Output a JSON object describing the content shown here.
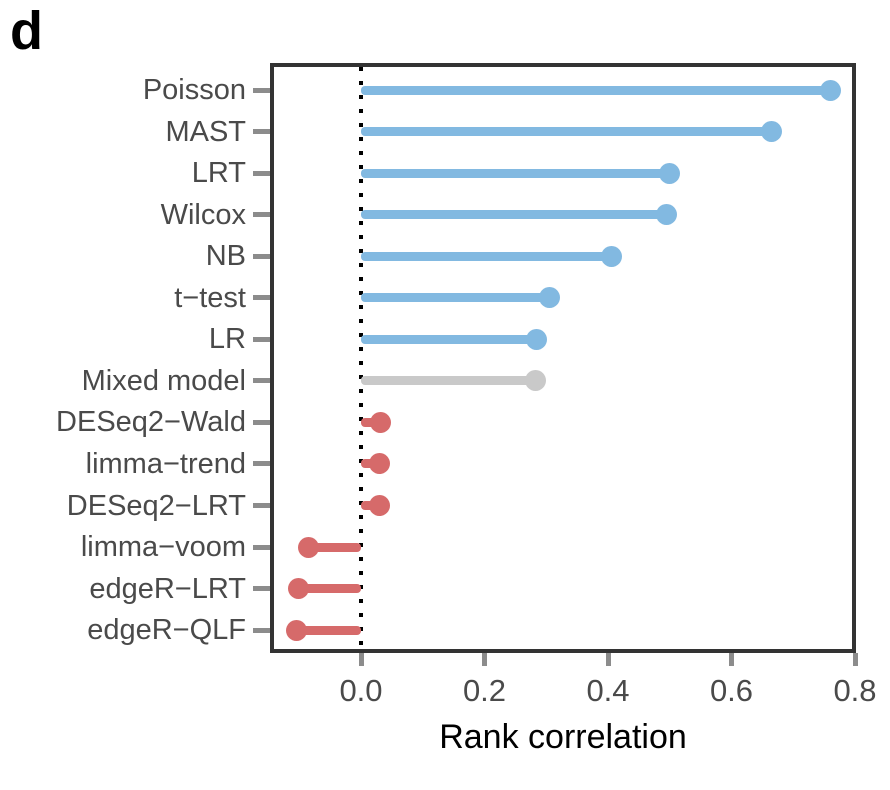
{
  "panel_label": "d",
  "chart_data": {
    "type": "lollipop",
    "orientation": "horizontal",
    "title": "",
    "xlabel": "Rank correlation",
    "ylabel": "",
    "xlim": [
      -0.147,
      0.802
    ],
    "grid": false,
    "legend": false,
    "x_ticks": [
      {
        "label": "0.0",
        "value": 0.0
      },
      {
        "label": "0.2",
        "value": 0.2
      },
      {
        "label": "0.4",
        "value": 0.4
      },
      {
        "label": "0.6",
        "value": 0.6
      },
      {
        "label": "0.8",
        "value": 0.8
      }
    ],
    "reference_line": {
      "value": 0.0,
      "style": "dotted",
      "color": "#000000"
    },
    "categories": [
      "Poisson",
      "MAST",
      "LRT",
      "Wilcox",
      "NB",
      "t−test",
      "LR",
      "Mixed model",
      "DESeq2−Wald",
      "limma−trend",
      "DESeq2−LRT",
      "limma−voom",
      "edgeR−LRT",
      "edgeR−QLF"
    ],
    "values": [
      0.76,
      0.665,
      0.5,
      0.495,
      0.405,
      0.305,
      0.285,
      0.283,
      0.031,
      0.03,
      0.03,
      -0.085,
      -0.101,
      -0.105
    ],
    "point_groups": [
      "blue",
      "blue",
      "blue",
      "blue",
      "blue",
      "blue",
      "blue",
      "gray",
      "red",
      "red",
      "red",
      "red",
      "red",
      "red"
    ],
    "palette": {
      "blue": "#82B9E1",
      "gray": "#C9C9C9",
      "red": "#D66A6A"
    }
  },
  "colors": {
    "axis_text": "#4a4a4a",
    "axis_title": "#000000",
    "panel_border": "#333333",
    "tick_mark": "#8c8c8c",
    "background": "#ffffff"
  }
}
